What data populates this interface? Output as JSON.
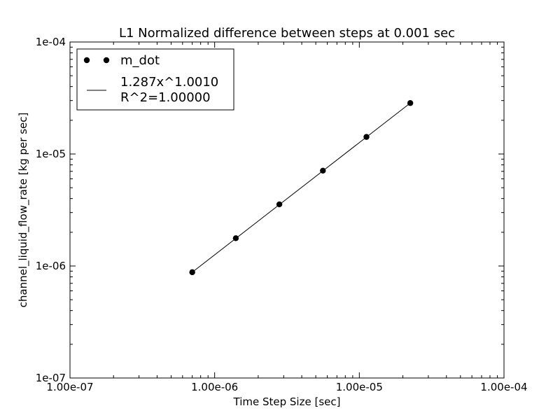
{
  "chart_data": {
    "type": "line",
    "title": "L1 Normalized difference between steps at 0.001 sec",
    "xlabel": "Time Step Size [sec]",
    "ylabel": "channel_liquid_flow_rate [kg per sec]",
    "xscale": "log",
    "yscale": "log",
    "xlim": [
      1e-07,
      0.0001
    ],
    "ylim": [
      1e-07,
      0.0001
    ],
    "xticks": [
      1e-07,
      1e-06,
      1e-05,
      0.0001
    ],
    "xtick_labels": [
      "1.00e-07",
      "1.00e-06",
      "1.00e-05",
      "1.00e-04"
    ],
    "yticks": [
      1e-07,
      1e-06,
      1e-05,
      0.0001
    ],
    "ytick_labels": [
      "1e-07",
      "1e-06",
      "1e-05",
      "1e-04"
    ],
    "grid": false,
    "legend_position": "top-left",
    "series": [
      {
        "name": "m_dot",
        "style": "markers",
        "color": "#000000",
        "x": [
          7e-07,
          1.4e-06,
          2.8e-06,
          5.6e-06,
          1.12e-05,
          2.25e-05
        ],
        "y": [
          8.8e-07,
          1.77e-06,
          3.55e-06,
          7.1e-06,
          1.42e-05,
          2.85e-05
        ]
      },
      {
        "name": "1.287x^1.0010\nR^2=1.00000",
        "name_lines": [
          "1.287x^1.0010",
          "R^2=1.00000"
        ],
        "style": "line",
        "color": "#000000",
        "x": [
          7e-07,
          2.25e-05
        ],
        "y": [
          8.8e-07,
          2.85e-05
        ]
      }
    ]
  }
}
